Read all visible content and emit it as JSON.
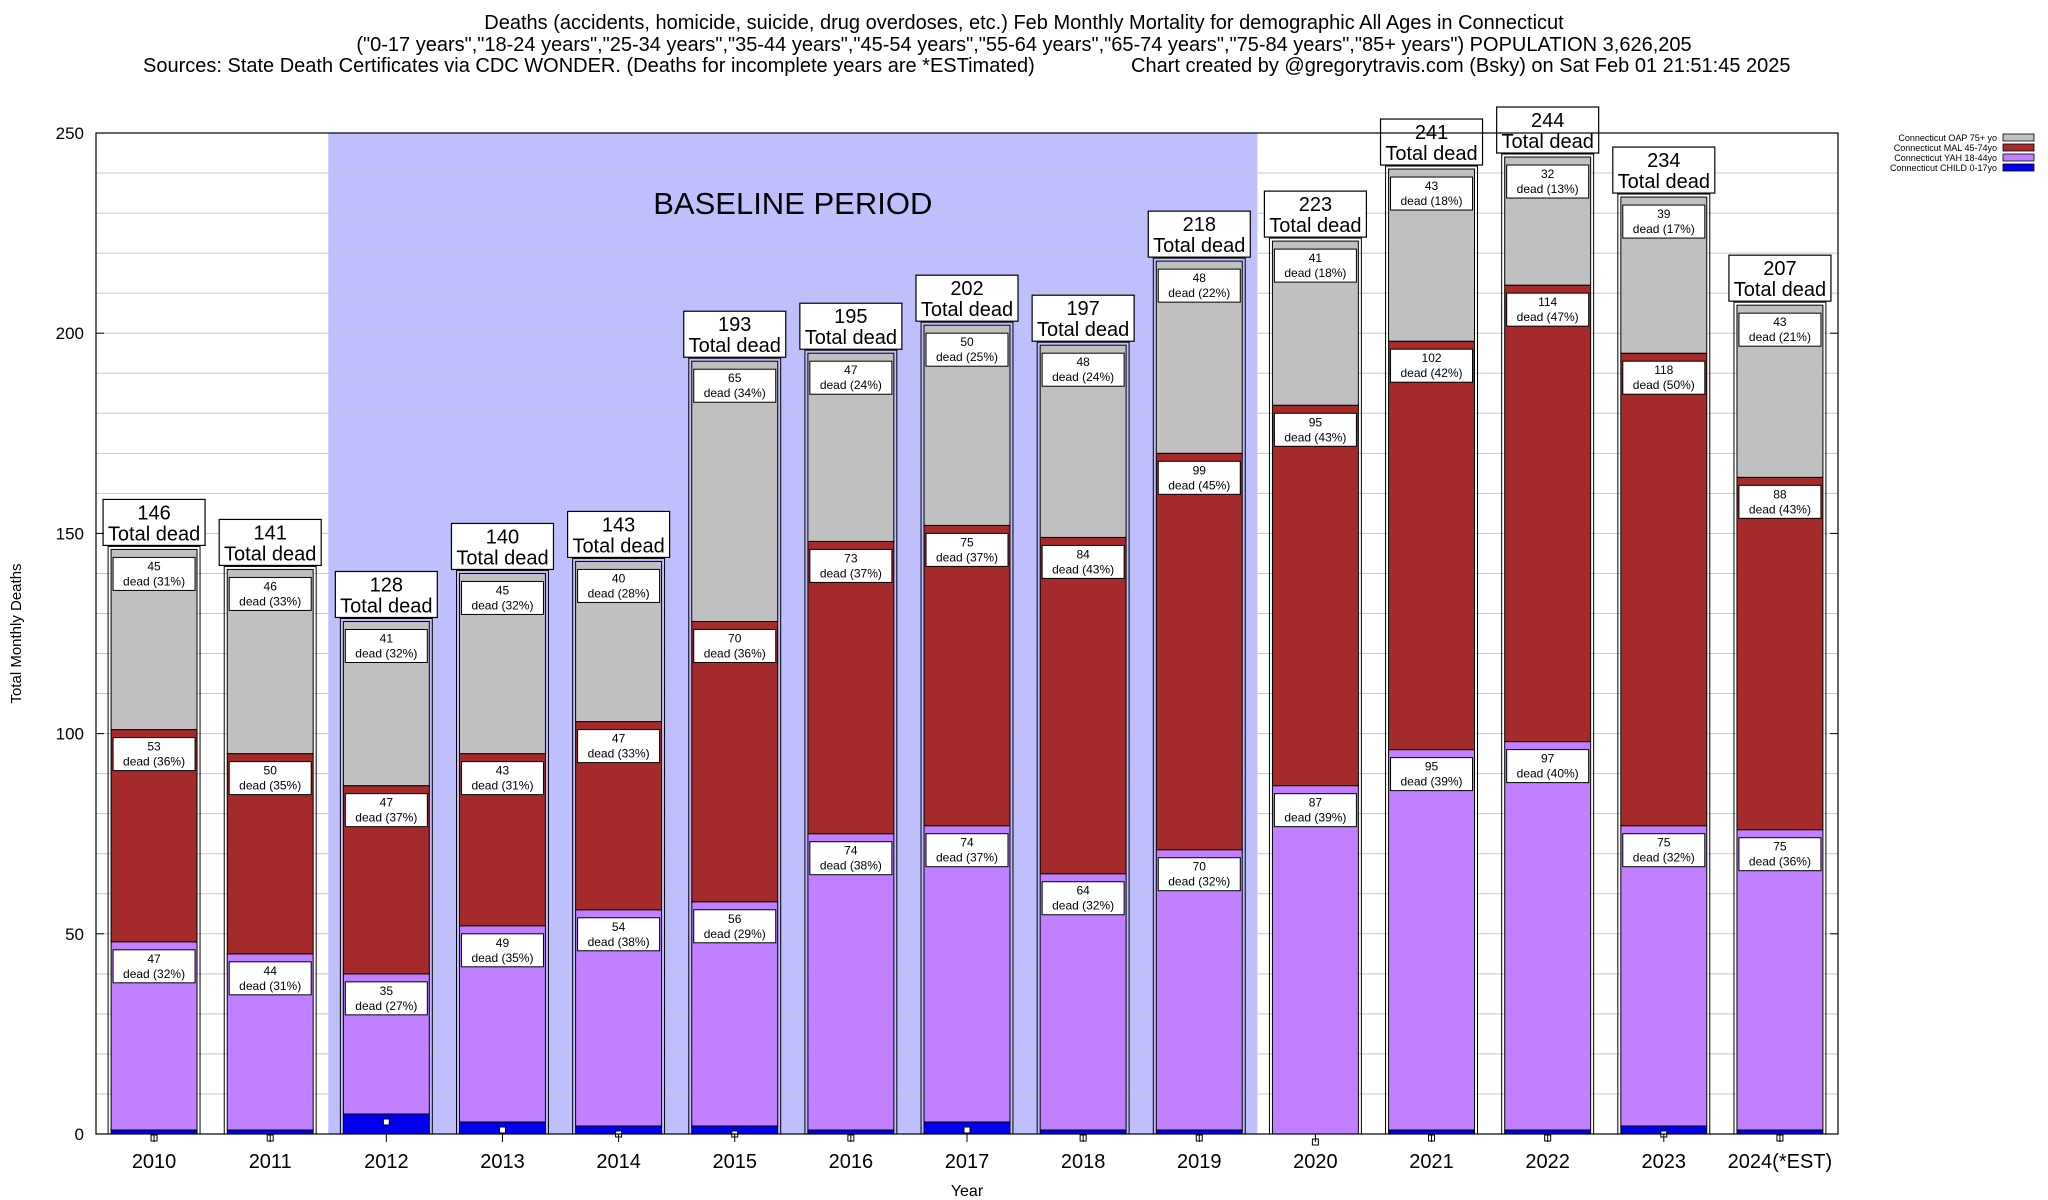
{
  "title": {
    "line1": "Deaths (accidents, homicide, suicide, drug overdoses, etc.) Feb Monthly Mortality for demographic All Ages in Connecticut",
    "line2": "(\"0-17 years\",\"18-24 years\",\"25-34 years\",\"35-44 years\",\"45-54 years\",\"55-64 years\",\"65-74 years\",\"75-84 years\",\"85+ years\") POPULATION 3,626,205",
    "sources": "Sources: State Death Certificates via CDC WONDER. (Deaths for incomplete years are *ESTimated)",
    "credit": "Chart created by @gregorytravis.com (Bsky) on Sat Feb 01 21:51:45 2025"
  },
  "chart_data": {
    "type": "bar",
    "stacked": true,
    "xlabel": "Year",
    "ylabel": "Total Monthly Deaths",
    "ylim": [
      0,
      250
    ],
    "yticks": [
      0,
      50,
      100,
      150,
      200,
      250
    ],
    "grid": true,
    "legend_position": "top-right",
    "categories": [
      "2010",
      "2011",
      "2012",
      "2013",
      "2014",
      "2015",
      "2016",
      "2017",
      "2018",
      "2019",
      "2020",
      "2021",
      "2022",
      "2023",
      "2024(*EST)"
    ],
    "baseline": {
      "label": "BASELINE PERIOD",
      "from": "2012",
      "to": "2019",
      "color": "#bfbffe"
    },
    "series": [
      {
        "name": "Connecticut CHILD 0-17yo",
        "color": "#0000ee",
        "values": [
          1,
          1,
          5,
          3,
          2,
          2,
          1,
          3,
          1,
          1,
          0,
          1,
          1,
          2,
          1
        ]
      },
      {
        "name": "Connecticut YAH 18-44yo",
        "color": "#c080ff",
        "values": [
          47,
          44,
          35,
          49,
          54,
          56,
          74,
          74,
          64,
          70,
          87,
          95,
          97,
          75,
          75
        ]
      },
      {
        "name": "Connecticut MAL 45-74yo",
        "color": "#a52a2a",
        "values": [
          53,
          50,
          47,
          43,
          47,
          70,
          73,
          75,
          84,
          99,
          95,
          102,
          114,
          118,
          88
        ]
      },
      {
        "name": "Connecticut OAP 75+ yo",
        "color": "#c0c0c0",
        "values": [
          45,
          46,
          41,
          45,
          40,
          65,
          47,
          50,
          48,
          48,
          41,
          43,
          32,
          39,
          43
        ]
      }
    ],
    "segment_labels": {
      "Connecticut YAH 18-44yo": [
        "dead (32%)",
        "dead (31%)",
        "dead (27%)",
        "dead (35%)",
        "dead (38%)",
        "dead (29%)",
        "dead (38%)",
        "dead (37%)",
        "dead (32%)",
        "dead (32%)",
        "dead (39%)",
        "dead (39%)",
        "dead (40%)",
        "dead (32%)",
        "dead (36%)"
      ],
      "Connecticut MAL 45-74yo": [
        "dead (36%)",
        "dead (35%)",
        "dead (37%)",
        "dead (31%)",
        "dead (33%)",
        "dead (36%)",
        "dead (37%)",
        "dead (37%)",
        "dead (43%)",
        "dead (45%)",
        "dead (43%)",
        "dead (42%)",
        "dead (47%)",
        "dead (50%)",
        "dead (43%)"
      ],
      "Connecticut OAP 75+ yo": [
        "dead (31%)",
        "dead (33%)",
        "dead (32%)",
        "dead (32%)",
        "dead (28%)",
        "dead (34%)",
        "dead (24%)",
        "dead (25%)",
        "dead (24%)",
        "dead (22%)",
        "dead (18%)",
        "dead (18%)",
        "dead (13%)",
        "dead (17%)",
        "dead (21%)"
      ]
    },
    "totals": [
      146,
      141,
      128,
      140,
      143,
      193,
      195,
      202,
      197,
      218,
      223,
      241,
      244,
      234,
      207
    ],
    "total_label": "Total dead"
  }
}
